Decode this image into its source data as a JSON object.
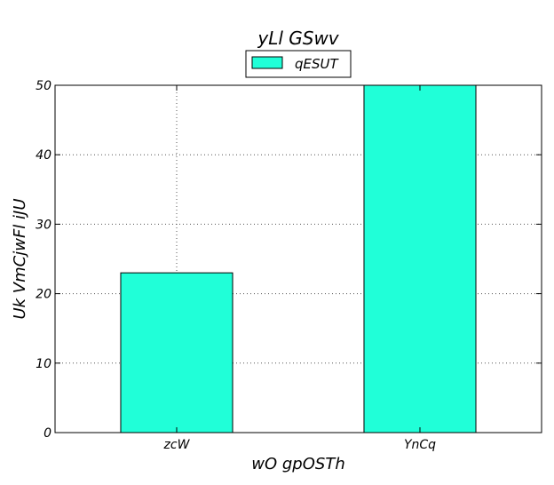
{
  "chart_data": {
    "type": "bar",
    "title": "yLl GSwv",
    "xlabel": "wO gpOSTh",
    "ylabel": "Uk VmCjwFl iJU",
    "categories": [
      "zcW",
      "YnCq"
    ],
    "series": [
      {
        "name": "qESUT",
        "values": [
          23,
          50
        ],
        "color": "#20ffd8"
      }
    ],
    "ylim": [
      0,
      50
    ],
    "yticks": [
      0,
      10,
      20,
      30,
      40,
      50
    ],
    "grid": true,
    "legend_position": "top-center"
  }
}
